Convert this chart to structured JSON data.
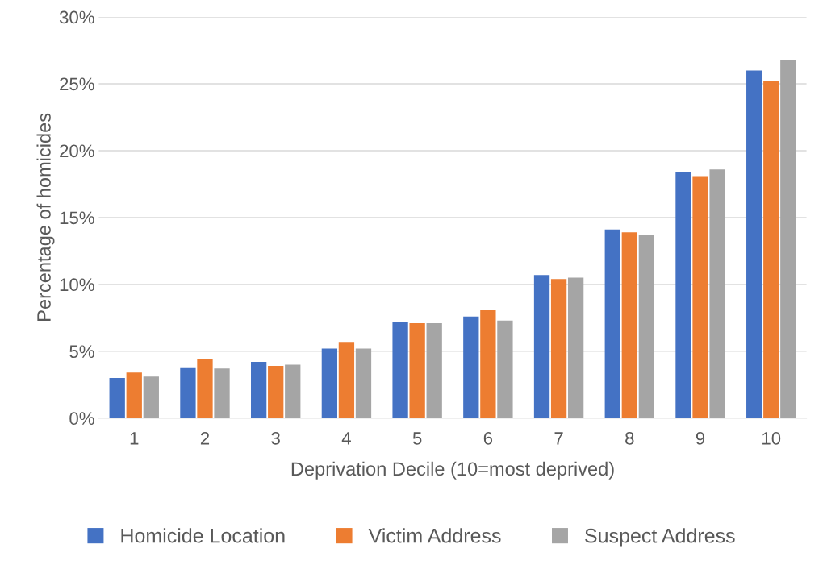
{
  "chart_data": {
    "type": "bar",
    "xlabel": "Deprivation Decile (10=most deprived)",
    "ylabel": "Percentage of homicides",
    "categories": [
      "1",
      "2",
      "3",
      "4",
      "5",
      "6",
      "7",
      "8",
      "9",
      "10"
    ],
    "series": [
      {
        "name": "Homicide Location",
        "color": "#4472c4",
        "values": [
          3.0,
          3.8,
          4.2,
          5.2,
          7.2,
          7.6,
          10.7,
          14.1,
          18.4,
          26.0
        ]
      },
      {
        "name": "Victim Address",
        "color": "#ed7d31",
        "values": [
          3.4,
          4.4,
          3.9,
          5.7,
          7.1,
          8.1,
          10.4,
          13.9,
          18.1,
          25.2
        ]
      },
      {
        "name": "Suspect Address",
        "color": "#a5a5a5",
        "values": [
          3.1,
          3.7,
          4.0,
          5.2,
          7.1,
          7.3,
          10.5,
          13.7,
          18.6,
          26.8
        ]
      }
    ],
    "ylim": [
      0,
      30
    ],
    "yticks": [
      {
        "value": 0,
        "label": "0%"
      },
      {
        "value": 5,
        "label": "5%"
      },
      {
        "value": 10,
        "label": "10%"
      },
      {
        "value": 15,
        "label": "15%"
      },
      {
        "value": 20,
        "label": "20%"
      },
      {
        "value": 25,
        "label": "25%"
      },
      {
        "value": 30,
        "label": "30%"
      }
    ],
    "grid": "y",
    "legend": "bottom"
  }
}
